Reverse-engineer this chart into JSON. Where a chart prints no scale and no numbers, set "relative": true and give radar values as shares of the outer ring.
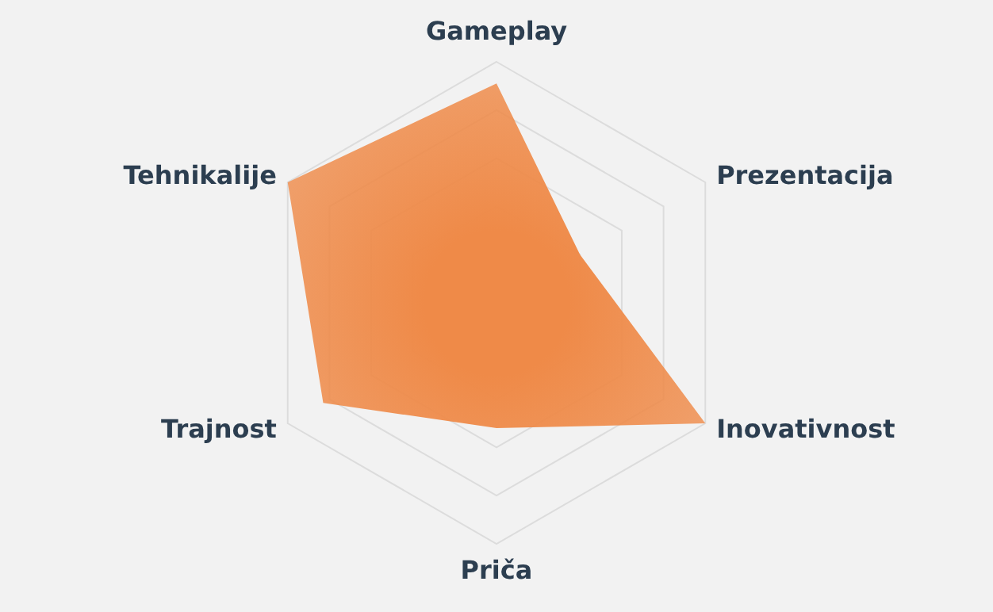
{
  "chart_data": {
    "type": "radar",
    "relative": true,
    "categories": [
      "Gameplay",
      "Prezentacija",
      "Inovativnost",
      "Priča",
      "Trajnost",
      "Tehnikalije"
    ],
    "series": [
      {
        "color": "#ef8a48",
        "values": [
          0.91,
          0.4,
          1,
          0.52,
          0.83,
          1
        ]
      }
    ],
    "grid": true
  }
}
